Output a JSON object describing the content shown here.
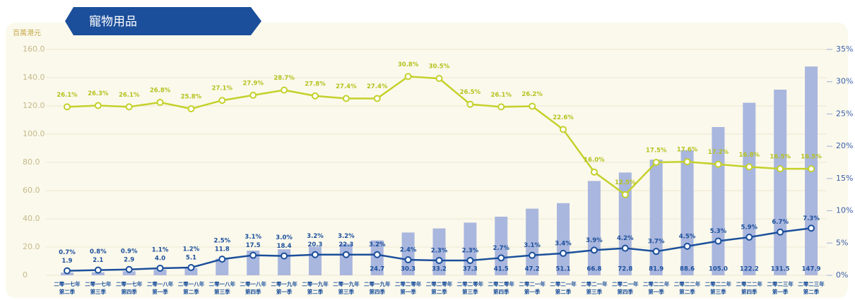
{
  "chart_data": {
    "type": "bar_line",
    "title": "寵物用品",
    "y_label": "百萬港元",
    "categories": [
      [
        "二零一七年",
        "第二季"
      ],
      [
        "二零一七年",
        "第三季"
      ],
      [
        "二零一七年",
        "第四季"
      ],
      [
        "二零一八年",
        "第一季"
      ],
      [
        "二零一八年",
        "第二季"
      ],
      [
        "二零一八年",
        "第三季"
      ],
      [
        "二零一八年",
        "第四季"
      ],
      [
        "二零一九年",
        "第一季"
      ],
      [
        "二零一九年",
        "第二季"
      ],
      [
        "二零一九年",
        "第三季"
      ],
      [
        "二零一九年",
        "第四季"
      ],
      [
        "二零二零年",
        "第一季"
      ],
      [
        "二零二零年",
        "第二季"
      ],
      [
        "二零二零年",
        "第三季"
      ],
      [
        "二零二零年",
        "第四季"
      ],
      [
        "二零二一年",
        "第一季"
      ],
      [
        "二零二一年",
        "第二季"
      ],
      [
        "二零二一年",
        "第三季"
      ],
      [
        "二零二一年",
        "第四季"
      ],
      [
        "二零二二年",
        "第一季"
      ],
      [
        "二零二二年",
        "第二季"
      ],
      [
        "二零二二年",
        "第三季"
      ],
      [
        "二零二二年",
        "第四季"
      ],
      [
        "二零二三年",
        "第一季"
      ],
      [
        "二零二三年",
        "第二季"
      ]
    ],
    "series": [
      {
        "type": "bar",
        "color": "#a9b6de",
        "values": [
          1.9,
          2.1,
          2.9,
          4.0,
          5.1,
          11.8,
          17.5,
          18.4,
          20.3,
          22.3,
          24.7,
          30.3,
          33.2,
          37.3,
          41.5,
          47.2,
          51.1,
          66.8,
          72.8,
          81.9,
          88.6,
          105.0,
          122.2,
          131.5,
          147.9
        ],
        "value_labels": [
          "1.9",
          "2.1",
          "2.9",
          "4.0",
          "5.1",
          "11.8",
          "17.5",
          "18.4",
          "20.3",
          "22.3",
          "24.7",
          "30.3",
          "33.2",
          "37.3",
          "41.5",
          "47.2",
          "51.1",
          "66.8",
          "72.8",
          "81.9",
          "88.6",
          "105.0",
          "122.2",
          "131.5",
          "147.9"
        ]
      },
      {
        "type": "line",
        "axis": "y2",
        "color": "#c4d12b",
        "values": [
          26.1,
          26.3,
          26.1,
          26.8,
          25.8,
          27.1,
          27.9,
          28.7,
          27.8,
          27.4,
          27.4,
          30.8,
          30.5,
          26.5,
          26.1,
          26.2,
          22.6,
          16.0,
          12.5,
          17.5,
          17.6,
          17.2,
          16.8,
          16.5,
          16.5
        ],
        "value_labels": [
          "26.1%",
          "26.3%",
          "26.1%",
          "26.8%",
          "25.8%",
          "27.1%",
          "27.9%",
          "28.7%",
          "27.8%",
          "27.4%",
          "27.4%",
          "30.8%",
          "30.5%",
          "26.5%",
          "26.1%",
          "26.2%",
          "22.6%",
          "16.0%",
          "12.5%",
          "17.5%",
          "17.6%",
          "17.2%",
          "16.8%",
          "16.5%",
          "16.5%"
        ]
      },
      {
        "type": "line",
        "axis": "y2",
        "color": "#1b4f9b",
        "values": [
          0.7,
          0.8,
          0.9,
          1.1,
          1.2,
          2.5,
          3.1,
          3.0,
          3.2,
          3.2,
          3.2,
          2.4,
          2.3,
          2.3,
          2.7,
          3.1,
          3.4,
          3.9,
          4.2,
          3.7,
          4.5,
          5.3,
          5.9,
          6.7,
          7.3
        ],
        "value_labels": [
          "0.7%",
          "0.8%",
          "0.9%",
          "1.1%",
          "1.2%",
          "2.5%",
          "3.1%",
          "3.0%",
          "3.2%",
          "3.2%",
          "3.2%",
          "2.4%",
          "2.3%",
          "2.3%",
          "2.7%",
          "3.1%",
          "3.4%",
          "3.9%",
          "4.2%",
          "3.7%",
          "4.5%",
          "5.3%",
          "5.9%",
          "6.7%",
          "7.3%"
        ]
      }
    ],
    "ylim": [
      0,
      160
    ],
    "yticks": [
      0,
      {
        "value": 20,
        "label": "20.0"
      },
      {
        "value": 40,
        "label": "40.0"
      },
      {
        "value": 60,
        "label": "60.0"
      },
      {
        "value": 80,
        "label": "80.0"
      },
      {
        "value": 100,
        "label": "100.0"
      },
      {
        "value": 120,
        "label": "120.0"
      },
      {
        "value": 140,
        "label": "140.0"
      },
      {
        "value": 160,
        "label": "160.0"
      }
    ],
    "y2lim": [
      0,
      35
    ],
    "y2ticks": [
      {
        "value": 0,
        "label": "0%"
      },
      {
        "value": 5,
        "label": "5%"
      },
      {
        "value": 10,
        "label": "10%"
      },
      {
        "value": 15,
        "label": "15%"
      },
      {
        "value": 20,
        "label": "20%"
      },
      {
        "value": 25,
        "label": "25%"
      },
      {
        "value": 30,
        "label": "30%"
      },
      {
        "value": 35,
        "label": "35%"
      }
    ],
    "grid": true
  }
}
